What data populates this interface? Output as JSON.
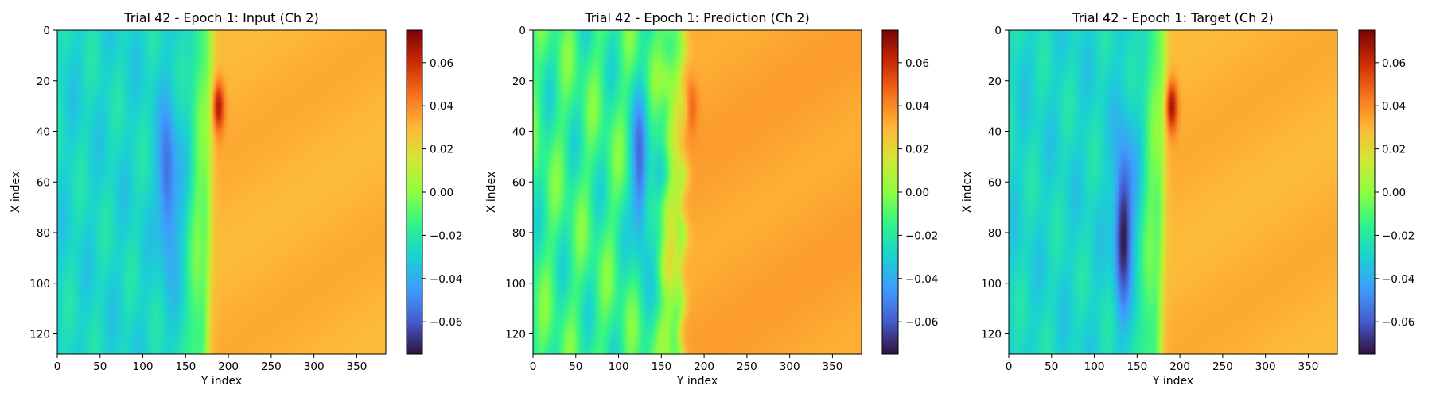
{
  "chart_data": [
    {
      "type": "heatmap",
      "title": "Trial 42 - Epoch 1: Input (Ch 2)",
      "xlabel": "Y index",
      "ylabel": "X index",
      "xlim": [
        0,
        384
      ],
      "ylim": [
        128,
        0
      ],
      "xticks": [
        0,
        50,
        100,
        150,
        200,
        250,
        300,
        350
      ],
      "yticks": [
        0,
        20,
        40,
        60,
        80,
        100,
        120
      ],
      "colorbar": {
        "vmin": -0.075,
        "vmax": 0.075,
        "ticks": [
          "0.06",
          "0.04",
          "0.02",
          "0.00",
          "−0.02",
          "−0.04",
          "−0.06"
        ],
        "tick_values": [
          0.06,
          0.04,
          0.02,
          0.0,
          -0.02,
          -0.04,
          -0.06
        ],
        "colormap": "turbo"
      },
      "field": {
        "background_left": -0.028,
        "background_right": 0.031,
        "shock_base_y": 178,
        "shock_slope": -0.04,
        "hot_spot": {
          "x": 30,
          "y": 188,
          "value": 0.068
        },
        "cold_spot": {
          "x": 60,
          "y": 128,
          "value": -0.048
        },
        "variant": "input"
      }
    },
    {
      "type": "heatmap",
      "title": "Trial 42 - Epoch 1: Prediction (Ch 2)",
      "xlabel": "Y index",
      "ylabel": "X index",
      "xlim": [
        0,
        384
      ],
      "ylim": [
        128,
        0
      ],
      "xticks": [
        0,
        50,
        100,
        150,
        200,
        250,
        300,
        350
      ],
      "yticks": [
        0,
        20,
        40,
        60,
        80,
        100,
        120
      ],
      "colorbar": {
        "vmin": -0.075,
        "vmax": 0.075,
        "ticks": [
          "0.06",
          "0.04",
          "0.02",
          "0.00",
          "−0.02",
          "−0.04",
          "−0.06"
        ],
        "tick_values": [
          0.06,
          0.04,
          0.02,
          0.0,
          -0.02,
          -0.04,
          -0.06
        ],
        "colormap": "turbo"
      },
      "field": {
        "background_left": -0.015,
        "background_right": 0.034,
        "shock_base_y": 175,
        "shock_slope": -0.02,
        "hot_spot": {
          "x": 30,
          "y": 185,
          "value": 0.05
        },
        "cold_spot": {
          "x": 60,
          "y": 125,
          "value": -0.05
        },
        "variant": "prediction"
      }
    },
    {
      "type": "heatmap",
      "title": "Trial 42 - Epoch 1: Target (Ch 2)",
      "xlabel": "Y index",
      "ylabel": "X index",
      "xlim": [
        0,
        384
      ],
      "ylim": [
        128,
        0
      ],
      "xticks": [
        0,
        50,
        100,
        150,
        200,
        250,
        300,
        350
      ],
      "yticks": [
        0,
        20,
        40,
        60,
        80,
        100,
        120
      ],
      "colorbar": {
        "vmin": -0.075,
        "vmax": 0.075,
        "ticks": [
          "0.06",
          "0.04",
          "0.02",
          "0.00",
          "−0.02",
          "−0.04",
          "−0.06"
        ],
        "tick_values": [
          0.06,
          0.04,
          0.02,
          0.0,
          -0.02,
          -0.04,
          -0.06
        ],
        "colormap": "turbo"
      },
      "field": {
        "background_left": -0.028,
        "background_right": 0.031,
        "shock_base_y": 180,
        "shock_slope": -0.04,
        "hot_spot": {
          "x": 30,
          "y": 190,
          "value": 0.07
        },
        "cold_spot": {
          "x": 80,
          "y": 133,
          "value": -0.068
        },
        "variant": "target"
      }
    }
  ]
}
